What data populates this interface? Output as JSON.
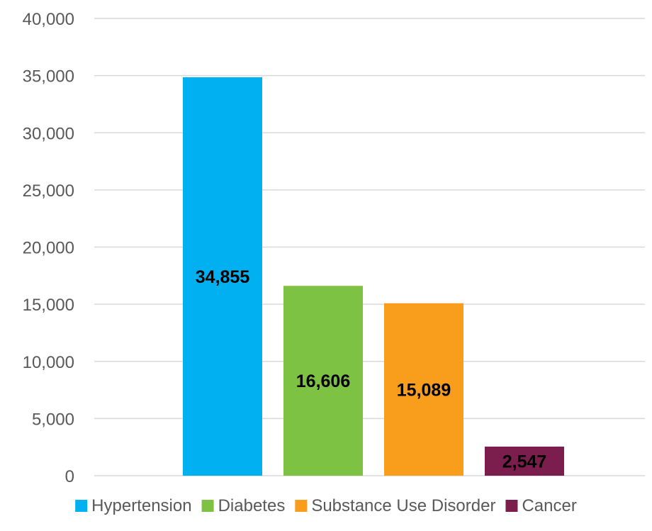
{
  "chart_data": {
    "type": "bar",
    "title": "",
    "xlabel": "",
    "ylabel": "",
    "ylim": [
      0,
      40000
    ],
    "y_ticks": [
      0,
      5000,
      10000,
      15000,
      20000,
      25000,
      30000,
      35000,
      40000
    ],
    "y_tick_labels": [
      "0",
      "5,000",
      "10,000",
      "15,000",
      "20,000",
      "25,000",
      "30,000",
      "35,000",
      "40,000"
    ],
    "grid": true,
    "legend_position": "bottom",
    "series": [
      {
        "name": "Hypertension",
        "value": 34855,
        "label": "34,855",
        "color": "#00B0F0",
        "label_color": "#000000"
      },
      {
        "name": "Diabetes",
        "value": 16606,
        "label": "16,606",
        "color": "#7DC242",
        "label_color": "#000000"
      },
      {
        "name": "Substance Use Disorder",
        "value": 15089,
        "label": "15,089",
        "color": "#F99D1C",
        "label_color": "#000000"
      },
      {
        "name": "Cancer",
        "value": 2547,
        "label": "2,547",
        "color": "#7B1E4E",
        "label_color": "#000000"
      }
    ],
    "gridline_color": "#D9D9D9",
    "axis_text_color": "#595959"
  }
}
